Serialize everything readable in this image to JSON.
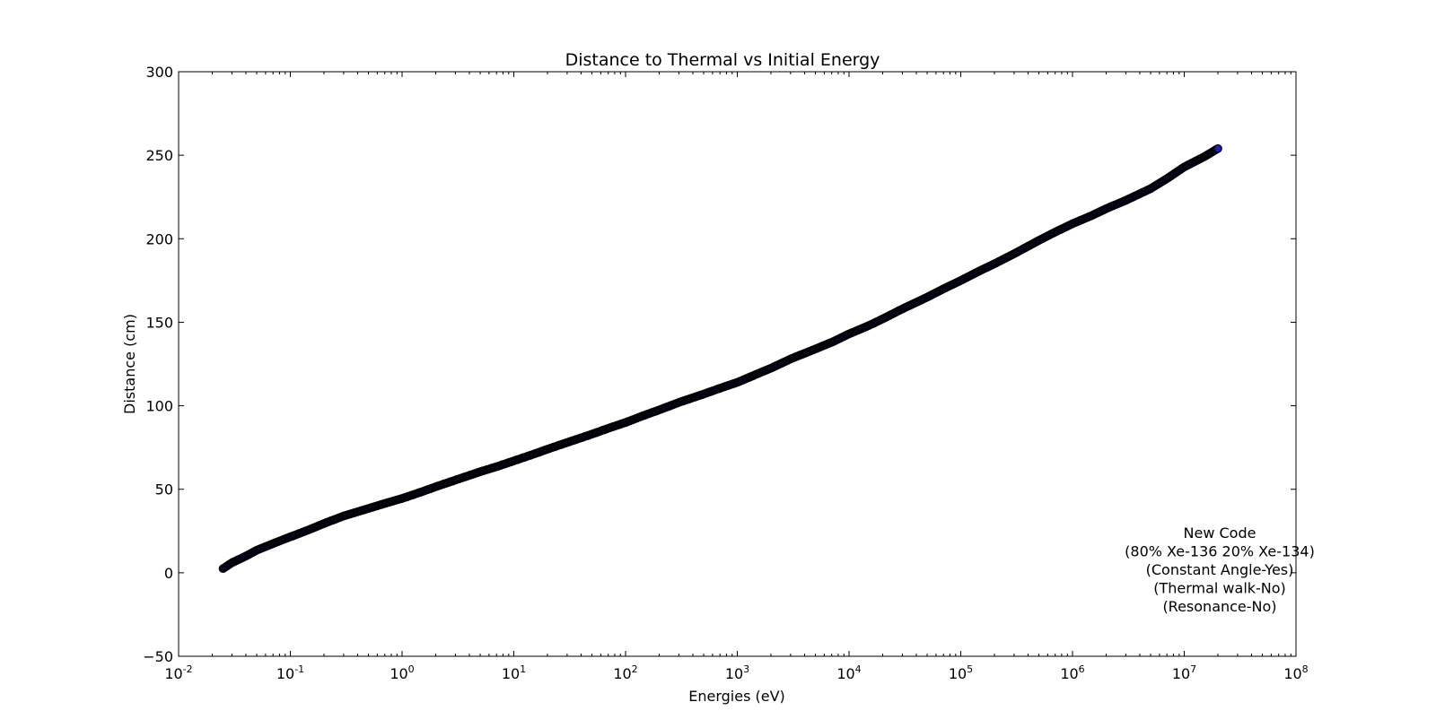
{
  "chart_data": {
    "type": "scatter",
    "title": "Distance to Thermal vs Initial Energy",
    "xlabel": "Energies (eV)",
    "ylabel": "Distance (cm)",
    "x_scale": "log",
    "xlim": [
      0.01,
      100000000
    ],
    "ylim": [
      -50,
      300
    ],
    "grid": false,
    "x_ticks": [
      {
        "base": "10",
        "exp": "-2"
      },
      {
        "base": "10",
        "exp": "-1"
      },
      {
        "base": "10",
        "exp": "0"
      },
      {
        "base": "10",
        "exp": "1"
      },
      {
        "base": "10",
        "exp": "2"
      },
      {
        "base": "10",
        "exp": "3"
      },
      {
        "base": "10",
        "exp": "4"
      },
      {
        "base": "10",
        "exp": "5"
      },
      {
        "base": "10",
        "exp": "6"
      },
      {
        "base": "10",
        "exp": "7"
      },
      {
        "base": "10",
        "exp": "8"
      }
    ],
    "y_ticks": [
      "−50",
      "0",
      "50",
      "100",
      "150",
      "200",
      "250",
      "300"
    ],
    "y_tick_values": [
      -50,
      0,
      50,
      100,
      150,
      200,
      250,
      300
    ],
    "series": [
      {
        "marker_color": "#1f1fb4",
        "x": [
          0.025,
          0.03,
          0.04,
          0.05,
          0.07,
          0.1,
          0.15,
          0.2,
          0.3,
          0.5,
          0.7,
          1,
          1.5,
          2,
          3,
          5,
          7,
          10,
          15,
          20,
          30,
          50,
          70,
          100,
          150,
          200,
          300,
          500,
          700,
          1000,
          1500,
          2000,
          3000,
          5000,
          7000,
          10000,
          15000,
          20000,
          30000,
          50000,
          70000,
          100000,
          150000,
          200000,
          300000,
          500000,
          700000,
          1000000,
          1500000,
          2000000,
          3000000,
          5000000,
          7000000,
          10000000,
          15000000,
          20000000
        ],
        "y": [
          2.5,
          6,
          10,
          13.5,
          17.5,
          21.5,
          26,
          29.5,
          34,
          38.5,
          41.5,
          44.5,
          48.5,
          51.5,
          55.5,
          60.5,
          63.5,
          67,
          71,
          74,
          78,
          83,
          86.5,
          90,
          94.5,
          97.5,
          102,
          107,
          110.5,
          114,
          119,
          122.5,
          128,
          134,
          138,
          143,
          148,
          152,
          158,
          165,
          170,
          175,
          181,
          185,
          191,
          199,
          204,
          209,
          214,
          218,
          223,
          230,
          236,
          243,
          249,
          254
        ]
      }
    ],
    "annotation": [
      "New Code",
      "(80% Xe-136 20% Xe-134)",
      "(Constant Angle-Yes)",
      "(Thermal walk-No)",
      "(Resonance-No)"
    ]
  }
}
